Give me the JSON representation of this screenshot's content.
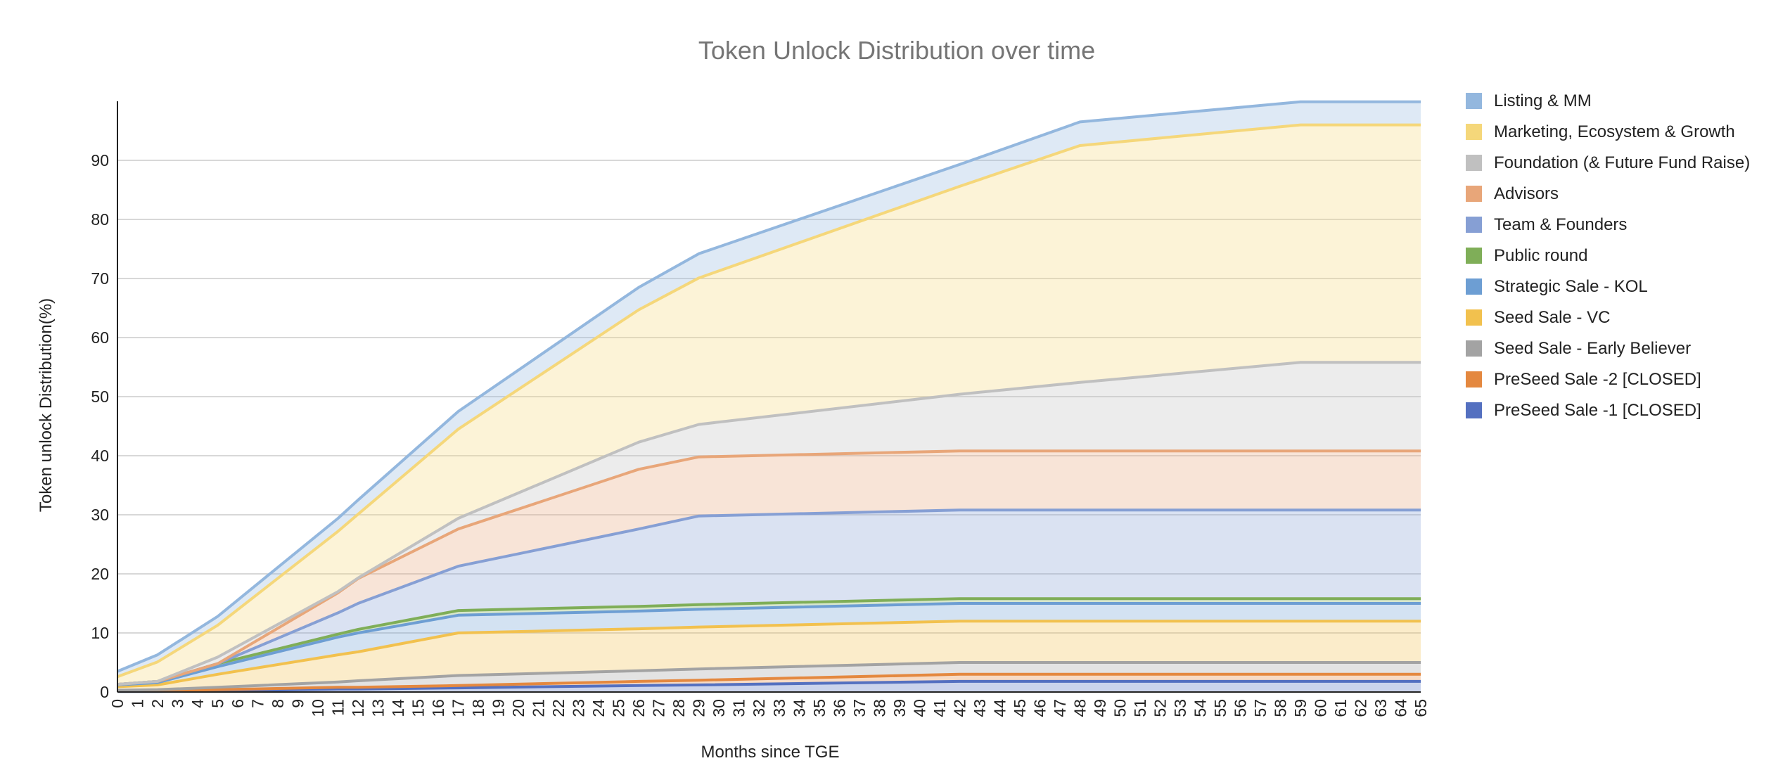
{
  "chart_data": {
    "type": "area",
    "stacked": true,
    "title": "Token Unlock Distribution over time",
    "xlabel": "Months since TGE",
    "ylabel": "Token unlock Distribution(%)",
    "xlim": [
      0,
      65
    ],
    "ylim": [
      0,
      100
    ],
    "y_ticks": [
      0,
      10,
      20,
      30,
      40,
      50,
      60,
      70,
      80,
      90
    ],
    "x_ticks": [
      0,
      1,
      2,
      3,
      4,
      5,
      6,
      7,
      8,
      9,
      10,
      11,
      12,
      13,
      14,
      15,
      16,
      17,
      18,
      19,
      20,
      21,
      22,
      23,
      24,
      25,
      26,
      27,
      28,
      29,
      30,
      31,
      32,
      33,
      34,
      35,
      36,
      37,
      38,
      39,
      40,
      41,
      42,
      43,
      44,
      45,
      46,
      47,
      48,
      49,
      50,
      51,
      52,
      53,
      54,
      55,
      56,
      57,
      58,
      59,
      60,
      61,
      62,
      63,
      64,
      65
    ],
    "grid": true,
    "legend_position": "right",
    "x": [
      0,
      2,
      5,
      11,
      12,
      17,
      26,
      29,
      42,
      48,
      59,
      65
    ],
    "series": [
      {
        "name": "PreSeed Sale -1 [CLOSED]",
        "color": "#5470c0",
        "cumulative": [
          0.1,
          0.1,
          0.2,
          0.5,
          0.5,
          0.7,
          1.1,
          1.2,
          1.8,
          1.8,
          1.8,
          1.8
        ]
      },
      {
        "name": "PreSeed Sale -2 [CLOSED]",
        "color": "#e4883f",
        "cumulative": [
          0.2,
          0.2,
          0.4,
          0.8,
          0.8,
          1.1,
          1.8,
          2.0,
          3.0,
          3.0,
          3.0,
          3.0
        ]
      },
      {
        "name": "Seed Sale - Early Believer",
        "color": "#a3a3a3",
        "cumulative": [
          0.3,
          0.4,
          0.8,
          1.7,
          1.9,
          2.8,
          3.6,
          3.9,
          5.0,
          5.0,
          5.0,
          5.0
        ]
      },
      {
        "name": "Seed Sale - VC",
        "color": "#f2c14e",
        "cumulative": [
          0.9,
          1.2,
          3.0,
          6.3,
          6.8,
          10.0,
          10.7,
          11.0,
          12.0,
          12.0,
          12.0,
          12.0
        ]
      },
      {
        "name": "Strategic Sale - KOL",
        "color": "#6d9ed3",
        "cumulative": [
          1.2,
          1.6,
          4.3,
          9.3,
          10.0,
          13.0,
          13.7,
          14.0,
          15.0,
          15.0,
          15.0,
          15.0
        ]
      },
      {
        "name": "Public round",
        "color": "#7fae58",
        "cumulative": [
          1.3,
          1.8,
          4.8,
          9.8,
          10.6,
          13.8,
          14.5,
          14.8,
          15.8,
          15.8,
          15.8,
          15.8
        ]
      },
      {
        "name": "Team & Founders",
        "color": "#869fd4",
        "cumulative": [
          1.3,
          1.8,
          4.8,
          13.4,
          15.0,
          21.3,
          27.6,
          29.8,
          30.8,
          30.8,
          30.8,
          30.8
        ]
      },
      {
        "name": "Advisors",
        "color": "#e8a679",
        "cumulative": [
          1.3,
          1.8,
          4.8,
          16.8,
          19.2,
          27.6,
          37.7,
          39.8,
          40.8,
          40.8,
          40.8,
          40.8
        ]
      },
      {
        "name": "Foundation (& Future Fund Raise)",
        "color": "#c0c0c0",
        "cumulative": [
          1.3,
          1.8,
          5.9,
          17.0,
          19.3,
          29.4,
          42.3,
          45.3,
          50.4,
          52.4,
          55.8,
          55.8
        ]
      },
      {
        "name": "Marketing, Ecosystem & Growth",
        "color": "#f5d77a",
        "cumulative": [
          2.6,
          5.1,
          11.3,
          27.2,
          30.1,
          44.5,
          64.7,
          70.1,
          85.6,
          92.5,
          96.0,
          96.0
        ]
      },
      {
        "name": "Listing & MM",
        "color": "#93b7de",
        "cumulative": [
          3.5,
          6.3,
          12.8,
          29.4,
          32.5,
          47.5,
          68.5,
          74.2,
          89.3,
          96.5,
          99.9,
          99.9
        ]
      }
    ]
  }
}
